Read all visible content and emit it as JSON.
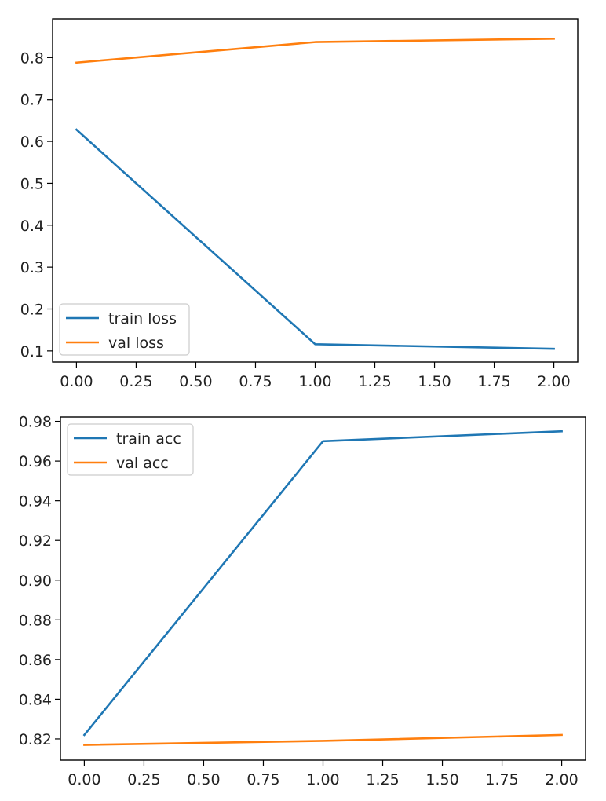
{
  "chart_data": [
    {
      "type": "line",
      "title": "",
      "xlabel": "",
      "ylabel": "",
      "x": [
        0,
        1,
        2
      ],
      "xlim": [
        -0.1,
        2.1
      ],
      "ylim": [
        0.0735,
        0.8925
      ],
      "xticks": [
        0.0,
        0.25,
        0.5,
        0.75,
        1.0,
        1.25,
        1.5,
        1.75,
        2.0
      ],
      "xtick_labels": [
        "0.00",
        "0.25",
        "0.50",
        "0.75",
        "1.00",
        "1.25",
        "1.50",
        "1.75",
        "2.00"
      ],
      "yticks": [
        0.1,
        0.2,
        0.3,
        0.4,
        0.5,
        0.6,
        0.7,
        0.8
      ],
      "ytick_labels": [
        "0.1",
        "0.2",
        "0.3",
        "0.4",
        "0.5",
        "0.6",
        "0.7",
        "0.8"
      ],
      "grid": false,
      "legend_position": "bottom-left",
      "series": [
        {
          "name": "train loss",
          "color": "#1f77b4",
          "values": [
            0.628,
            0.116,
            0.105
          ]
        },
        {
          "name": "val loss",
          "color": "#ff7f0e",
          "values": [
            0.788,
            0.837,
            0.845
          ]
        }
      ]
    },
    {
      "type": "line",
      "title": "",
      "xlabel": "",
      "ylabel": "",
      "x": [
        0,
        1,
        2
      ],
      "xlim": [
        -0.1,
        2.1
      ],
      "ylim": [
        0.8093,
        0.9822
      ],
      "xticks": [
        0.0,
        0.25,
        0.5,
        0.75,
        1.0,
        1.25,
        1.5,
        1.75,
        2.0
      ],
      "xtick_labels": [
        "0.00",
        "0.25",
        "0.50",
        "0.75",
        "1.00",
        "1.25",
        "1.50",
        "1.75",
        "2.00"
      ],
      "yticks": [
        0.82,
        0.84,
        0.86,
        0.88,
        0.9,
        0.92,
        0.94,
        0.96,
        0.98
      ],
      "ytick_labels": [
        "0.82",
        "0.84",
        "0.86",
        "0.88",
        "0.90",
        "0.92",
        "0.94",
        "0.96",
        "0.98"
      ],
      "grid": false,
      "legend_position": "top-left",
      "series": [
        {
          "name": "train acc",
          "color": "#1f77b4",
          "values": [
            0.822,
            0.97,
            0.975
          ]
        },
        {
          "name": "val acc",
          "color": "#ff7f0e",
          "values": [
            0.817,
            0.819,
            0.822
          ]
        }
      ]
    }
  ]
}
